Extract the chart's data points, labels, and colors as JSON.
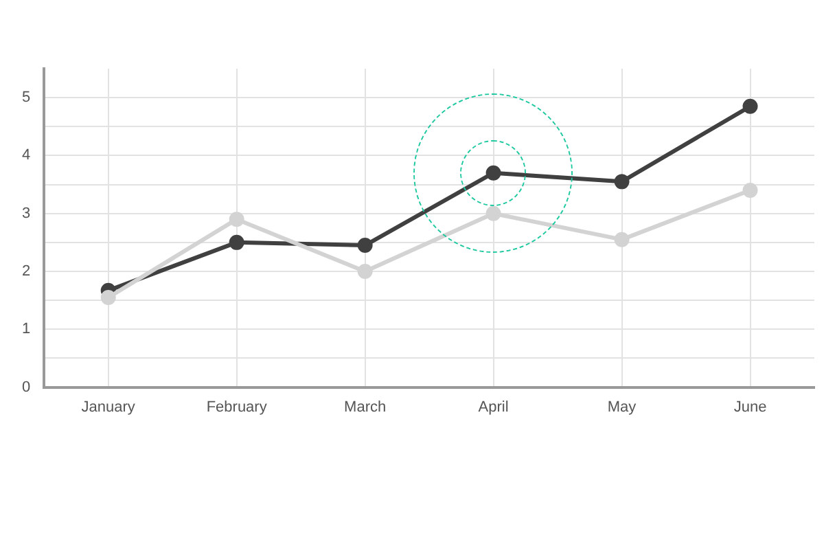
{
  "chart_data": {
    "type": "line",
    "categories": [
      "January",
      "February",
      "March",
      "April",
      "May",
      "June"
    ],
    "series": [
      {
        "color": "#d3d3d3",
        "values": [
          1.55,
          2.9,
          2.0,
          3.0,
          2.55,
          3.4
        ]
      },
      {
        "color": "#404040",
        "values": [
          1.67,
          2.5,
          2.45,
          3.7,
          3.55,
          4.85
        ]
      }
    ],
    "ylim": [
      0,
      5.5
    ],
    "yticks": [
      0,
      {
        "value": 0.5,
        "label": null
      },
      1,
      {
        "value": 1.5,
        "label": null
      },
      2,
      {
        "value": 2.5,
        "label": null
      },
      3,
      {
        "value": 3.5,
        "label": null
      },
      4,
      {
        "value": 4.5,
        "label": null
      },
      5
    ],
    "grid": true,
    "legend": false,
    "marker": "circle",
    "line_style": "solid"
  }
}
